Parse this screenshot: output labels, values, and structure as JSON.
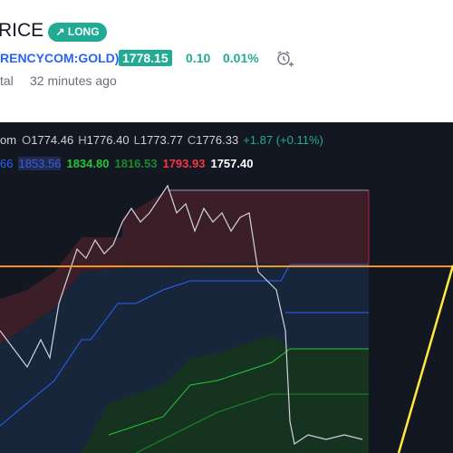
{
  "header": {
    "title": "RICE",
    "badge": "LONG",
    "symbol": "RENCYCOM:GOLD)",
    "price": "1778.15",
    "change": "0.10",
    "change_percent": "0.01%",
    "author": "tal",
    "time": "32 minutes ago"
  },
  "chart": {
    "symbol": "om",
    "ohlc": [
      {
        "label": "O",
        "value": "1774.46"
      },
      {
        "label": "H",
        "value": "1776.40"
      },
      {
        "label": "L",
        "value": "1773.77"
      },
      {
        "label": "C",
        "value": "1776.33"
      }
    ],
    "change": "+1.87 (+0.11%)",
    "indicators": [
      "66",
      "1853.56",
      "1834.80",
      "1816.53",
      "1793.93",
      "1757.40"
    ]
  }
}
